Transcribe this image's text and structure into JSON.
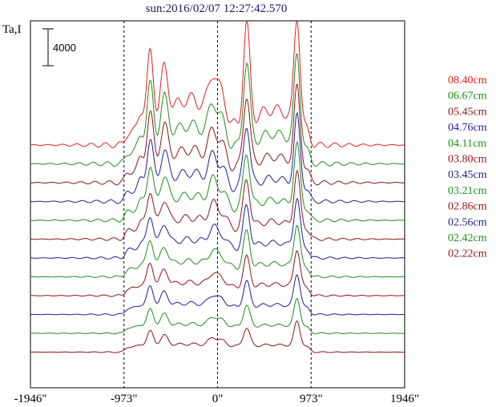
{
  "chart_data": {
    "type": "line",
    "title": "sun:2016/02/07 12:27:42.570",
    "ylabel": "Ta,I",
    "xlabel": "",
    "scale_bar_label": "4000",
    "scale_bar_value": 4000,
    "x_ticks": [
      {
        "value": -1946,
        "label": "-1946\""
      },
      {
        "value": -973,
        "label": "-973\""
      },
      {
        "value": 0,
        "label": "0\""
      },
      {
        "value": 973,
        "label": "973\""
      },
      {
        "value": 1946,
        "label": "1946\""
      }
    ],
    "xlim": [
      -1946,
      1946
    ],
    "dashed_vlines": [
      -973,
      0,
      973
    ],
    "series": [
      {
        "name": "08.40cm",
        "color": "#e02020",
        "amp": 1.0
      },
      {
        "name": "06.67cm",
        "color": "#1e8c1e",
        "amp": 0.93
      },
      {
        "name": "05.45cm",
        "color": "#8c1414",
        "amp": 0.87
      },
      {
        "name": "04.76cm",
        "color": "#1e1e96",
        "amp": 0.82
      },
      {
        "name": "04.11cm",
        "color": "#1e8c1e",
        "amp": 0.77
      },
      {
        "name": "03.80cm",
        "color": "#8c1414",
        "amp": 0.72
      },
      {
        "name": "03.45cm",
        "color": "#1e1e96",
        "amp": 0.67
      },
      {
        "name": "03.21cm",
        "color": "#1e8c1e",
        "amp": 0.62
      },
      {
        "name": "02.86cm",
        "color": "#8c1414",
        "amp": 0.57
      },
      {
        "name": "02.56cm",
        "color": "#1e1e96",
        "amp": 0.52
      },
      {
        "name": "02.42cm",
        "color": "#1e8c1e",
        "amp": 0.47
      },
      {
        "name": "02.22cm",
        "color": "#8c1414",
        "amp": 0.43
      }
    ]
  }
}
